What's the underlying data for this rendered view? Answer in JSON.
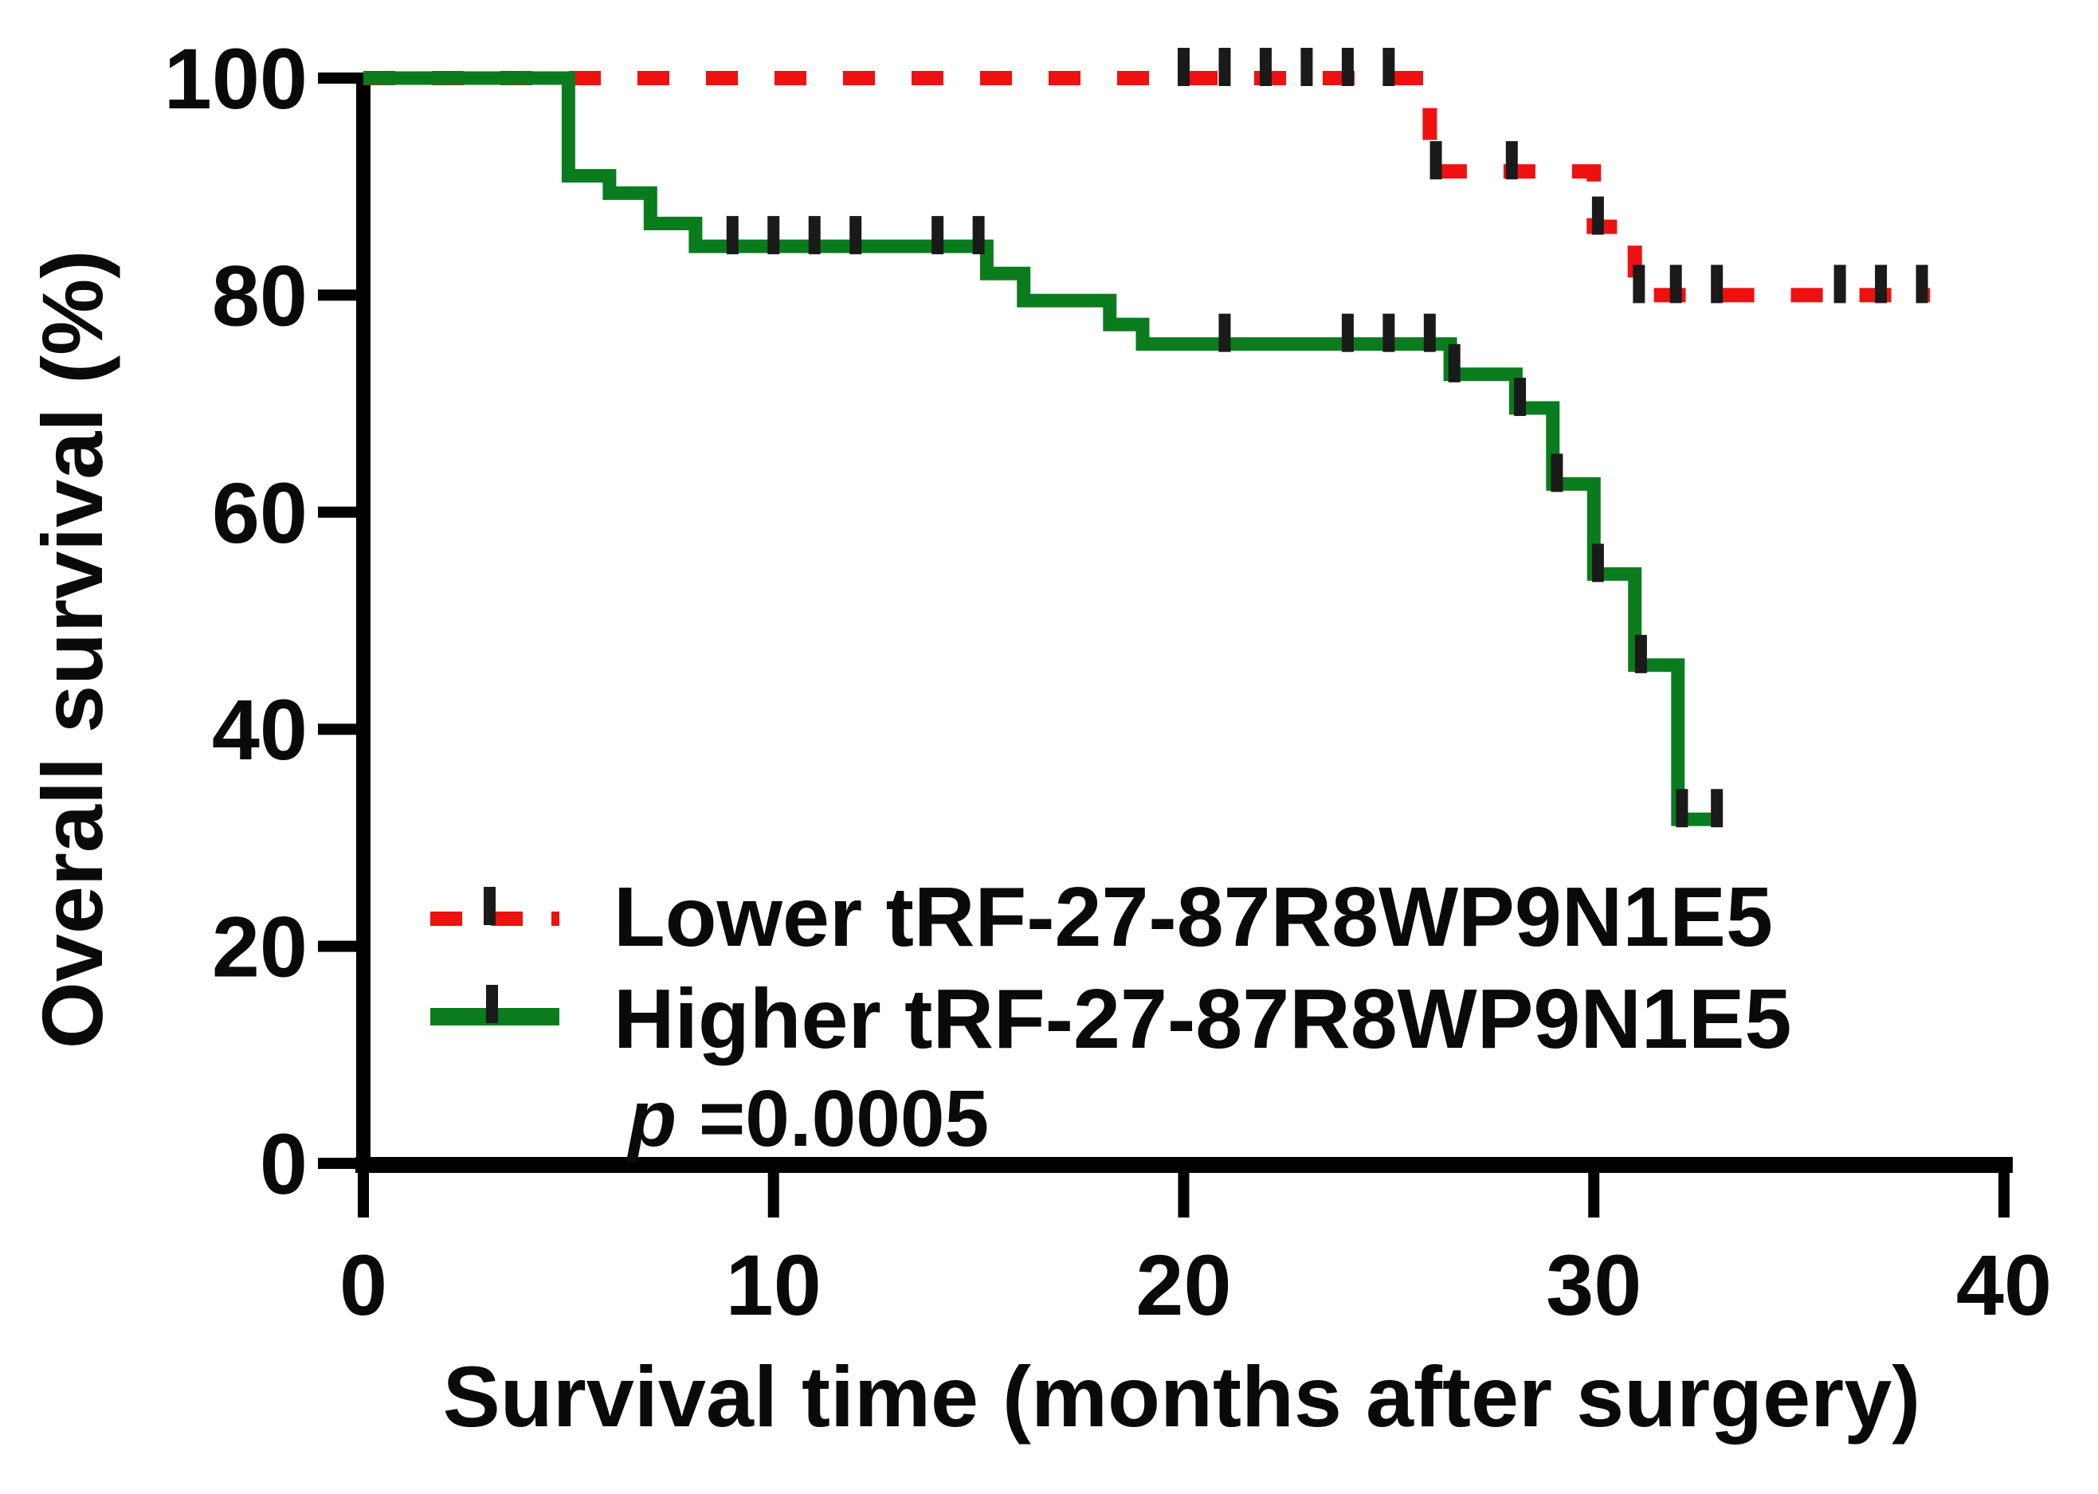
{
  "figure": {
    "background": "#ffffff",
    "axis_color": "#000000",
    "text_color": "#0a0a0a"
  },
  "chart_data": {
    "type": "line",
    "subtype": "kaplan_meier_step",
    "title": "",
    "xlabel": "Survival time (months after surgery)",
    "ylabel": "Overall survival (%)",
    "xlim": [
      0,
      40
    ],
    "ylim": [
      0,
      100
    ],
    "xticks": [
      "0",
      "10",
      "20",
      "30",
      "40"
    ],
    "ytick_values": [
      0,
      20,
      40,
      60,
      80,
      100
    ],
    "yticks": [
      "0",
      "20",
      "40",
      "60",
      "80",
      "100"
    ],
    "grid": false,
    "legend_position": "inside-lower-left",
    "p_value_label": "p",
    "p_value_text": " =0.0005",
    "censor_color": "#1a1a1a",
    "series": [
      {
        "name": "Lower tRF-27-87R8WP9N1E5",
        "color": "#ee1111",
        "line_style": "dashed",
        "steps": [
          [
            0,
            100
          ],
          [
            26,
            100
          ],
          [
            26,
            91.4
          ],
          [
            30,
            91.4
          ],
          [
            30,
            86.3
          ],
          [
            31,
            86.3
          ],
          [
            31,
            80
          ],
          [
            38.2,
            80
          ]
        ],
        "censor_marks": [
          [
            20,
            100
          ],
          [
            21,
            100
          ],
          [
            22,
            100
          ],
          [
            23,
            100
          ],
          [
            24,
            100
          ],
          [
            25,
            100
          ],
          [
            26.15,
            91.4
          ],
          [
            28,
            91.4
          ],
          [
            30.1,
            86.3
          ],
          [
            31.1,
            80
          ],
          [
            32,
            80
          ],
          [
            33,
            80
          ],
          [
            36,
            80
          ],
          [
            37,
            80
          ],
          [
            38,
            80
          ]
        ]
      },
      {
        "name": "Higher tRF-27-87R8WP9N1E5",
        "color": "#0a7c1e",
        "line_style": "solid",
        "steps": [
          [
            0,
            100
          ],
          [
            5,
            100
          ],
          [
            5,
            91
          ],
          [
            6,
            91
          ],
          [
            6,
            89.4
          ],
          [
            7,
            89.4
          ],
          [
            7,
            86.6
          ],
          [
            8.1,
            86.6
          ],
          [
            8.1,
            84.5
          ],
          [
            15.2,
            84.5
          ],
          [
            15.2,
            82
          ],
          [
            16.1,
            82
          ],
          [
            16.1,
            79.5
          ],
          [
            18.2,
            79.5
          ],
          [
            18.2,
            77.3
          ],
          [
            19,
            77.3
          ],
          [
            19,
            75.5
          ],
          [
            26.5,
            75.5
          ],
          [
            26.5,
            72.7
          ],
          [
            28.1,
            72.7
          ],
          [
            28.1,
            69.6
          ],
          [
            29,
            69.6
          ],
          [
            29,
            62.6
          ],
          [
            30,
            62.6
          ],
          [
            30,
            54.3
          ],
          [
            31,
            54.3
          ],
          [
            31,
            45.9
          ],
          [
            32.05,
            45.9
          ],
          [
            32.05,
            31.7
          ],
          [
            33,
            31.7
          ]
        ],
        "censor_marks": [
          [
            9,
            84.5
          ],
          [
            10,
            84.5
          ],
          [
            11,
            84.5
          ],
          [
            12,
            84.5
          ],
          [
            14,
            84.5
          ],
          [
            15,
            84.5
          ],
          [
            21,
            75.5
          ],
          [
            24,
            75.5
          ],
          [
            25,
            75.5
          ],
          [
            26,
            75.5
          ],
          [
            26.6,
            72.7
          ],
          [
            28.2,
            69.6
          ],
          [
            29.1,
            62.6
          ],
          [
            30.1,
            54.3
          ],
          [
            31.15,
            45.9
          ],
          [
            32.15,
            31.7
          ],
          [
            33,
            31.7
          ]
        ]
      }
    ]
  }
}
